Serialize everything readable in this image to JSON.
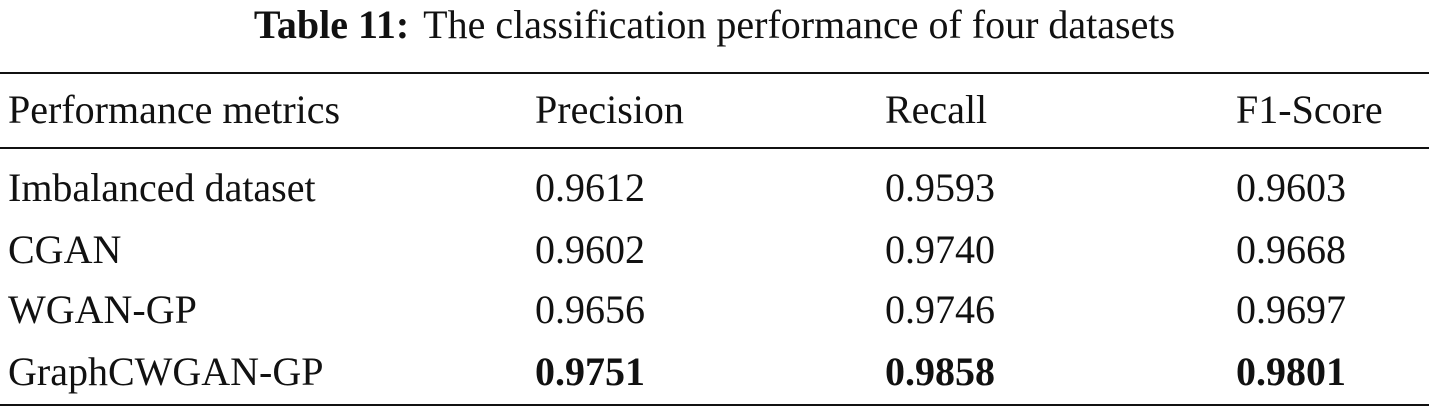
{
  "table": {
    "caption": {
      "label": "Table 11:",
      "text": "The classification performance of four datasets"
    },
    "header": [
      "Performance metrics",
      "Precision",
      "Recall",
      "F1-Score"
    ],
    "rows": [
      [
        "Imbalanced dataset",
        "0.9612",
        "0.9593",
        "0.9603"
      ],
      [
        "CGAN",
        "0.9602",
        "0.9740",
        "0.9668"
      ],
      [
        "WGAN-GP",
        "0.9656",
        "0.9746",
        "0.9697"
      ],
      [
        "GraphCWGAN-GP",
        "0.9751",
        "0.9858",
        "0.9801"
      ]
    ]
  }
}
